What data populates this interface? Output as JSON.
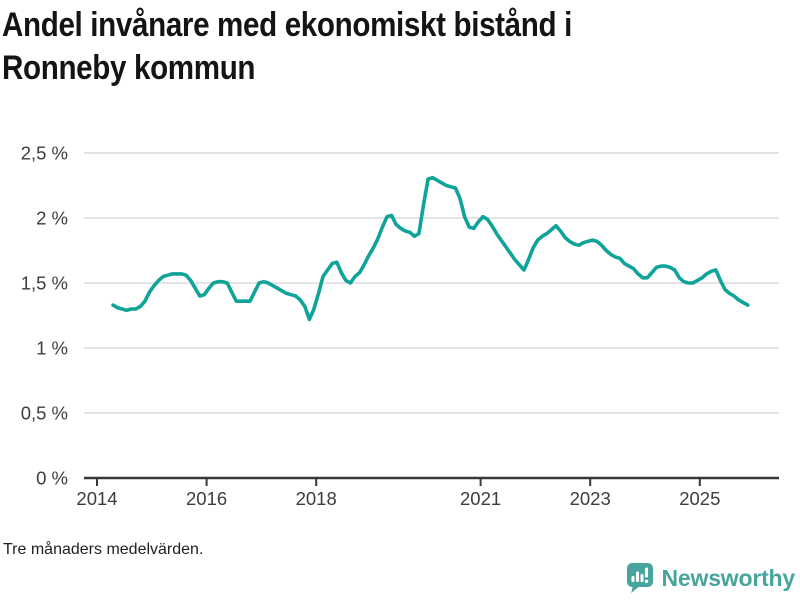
{
  "header": {
    "title": "Andel invånare med ekonomiskt bistånd i Ronneby kommun",
    "title_line1": "Andel invånare med ekonomiskt bistånd i",
    "title_line2": "Ronneby kommun"
  },
  "footer": {
    "note": "Tre månaders medelvärden.",
    "brand": "Newsworthy"
  },
  "colors": {
    "line": "#0fa39a",
    "brand": "#47a59d",
    "grid": "#e4e4e4",
    "axis": "#383838",
    "tick_text": "#3d3d3d",
    "title_text": "#141414"
  },
  "chart_data": {
    "type": "line",
    "title": "Andel invånare med ekonomiskt bistånd i Ronneby kommun",
    "subtitle_note": "Tre månaders medelvärden.",
    "unit": "%",
    "frequency": "monthly",
    "x_start": "2014-04",
    "x_end": "2025-11",
    "ylim": [
      0,
      2.5
    ],
    "grid": "horizontal",
    "legend": "none",
    "y_tick_values": [
      0,
      0.5,
      1,
      1.5,
      2,
      2.5
    ],
    "y_tick_labels": [
      "0 %",
      "0,5 %",
      "1 %",
      "1,5 %",
      "2 %",
      "2,5 %"
    ],
    "x_tick_years": [
      2014,
      2016,
      2018,
      2021,
      2023,
      2025
    ],
    "x_tick_labels": [
      "2014",
      "2016",
      "2018",
      "2021",
      "2023",
      "2025"
    ],
    "series": [
      {
        "name": "Andel invånare med ekonomiskt bistånd",
        "start_year": 2014,
        "start_month": 4,
        "values": [
          1.33,
          1.31,
          1.3,
          1.29,
          1.3,
          1.3,
          1.32,
          1.36,
          1.43,
          1.48,
          1.52,
          1.55,
          1.56,
          1.57,
          1.57,
          1.57,
          1.56,
          1.52,
          1.46,
          1.4,
          1.41,
          1.46,
          1.5,
          1.51,
          1.51,
          1.5,
          1.43,
          1.36,
          1.36,
          1.36,
          1.36,
          1.43,
          1.5,
          1.51,
          1.5,
          1.48,
          1.46,
          1.44,
          1.42,
          1.41,
          1.4,
          1.37,
          1.32,
          1.22,
          1.3,
          1.42,
          1.55,
          1.6,
          1.65,
          1.66,
          1.58,
          1.52,
          1.5,
          1.55,
          1.58,
          1.64,
          1.71,
          1.77,
          1.84,
          1.93,
          2.01,
          2.02,
          1.95,
          1.92,
          1.9,
          1.89,
          1.86,
          1.88,
          2.1,
          2.3,
          2.31,
          2.29,
          2.27,
          2.25,
          2.24,
          2.23,
          2.15,
          2.01,
          1.93,
          1.92,
          1.97,
          2.01,
          1.99,
          1.94,
          1.88,
          1.83,
          1.78,
          1.73,
          1.68,
          1.64,
          1.6,
          1.68,
          1.77,
          1.83,
          1.86,
          1.88,
          1.91,
          1.94,
          1.9,
          1.85,
          1.82,
          1.8,
          1.79,
          1.81,
          1.82,
          1.83,
          1.82,
          1.79,
          1.75,
          1.72,
          1.7,
          1.69,
          1.65,
          1.63,
          1.61,
          1.57,
          1.54,
          1.54,
          1.58,
          1.62,
          1.63,
          1.63,
          1.62,
          1.6,
          1.54,
          1.51,
          1.5,
          1.5,
          1.52,
          1.54,
          1.57,
          1.59,
          1.6,
          1.52,
          1.45,
          1.42,
          1.4,
          1.37,
          1.35,
          1.33
        ]
      }
    ]
  }
}
